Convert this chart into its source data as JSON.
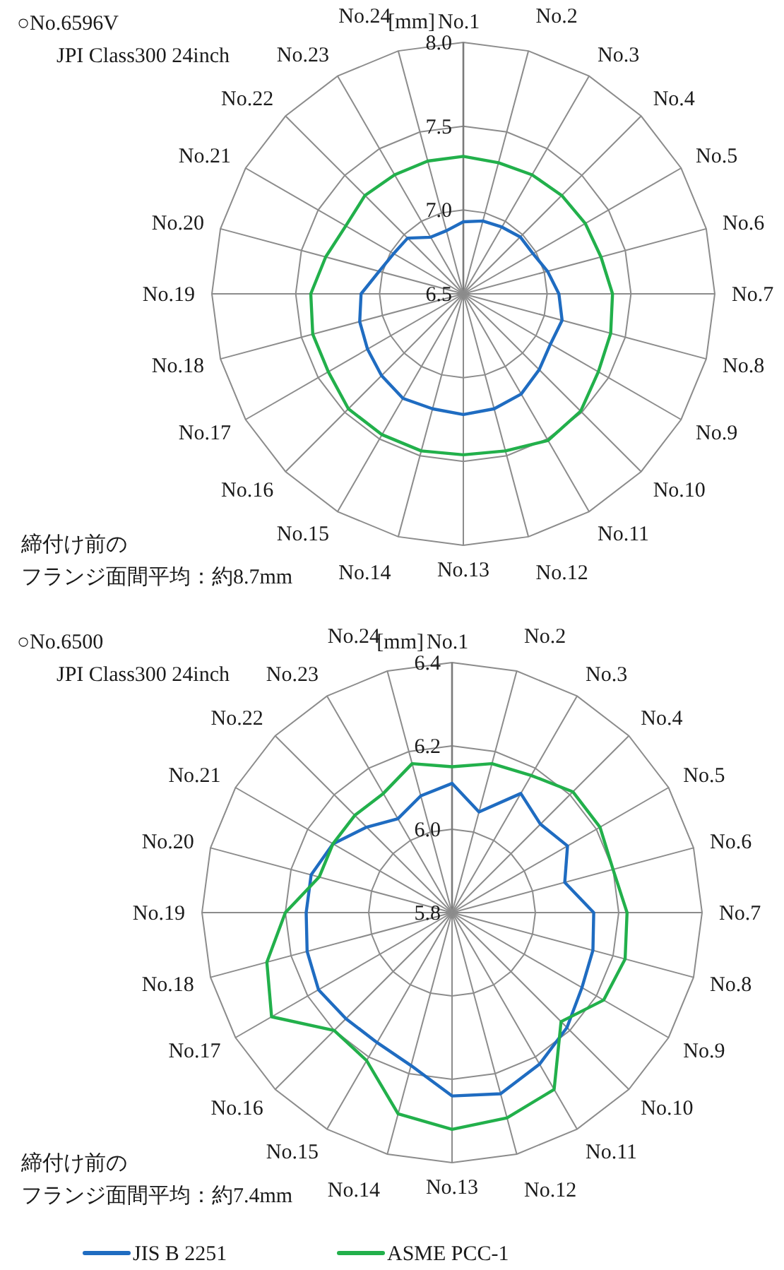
{
  "chart_data": [
    {
      "type": "radar",
      "title": "○No.6596V",
      "subtitle": "JPI Class300  24inch",
      "ylabel": "[mm]",
      "categories": [
        "No.1",
        "No.2",
        "No.3",
        "No.4",
        "No.5",
        "No.6",
        "No.7",
        "No.8",
        "No.9",
        "No.10",
        "No.11",
        "No.12",
        "No.13",
        "No.14",
        "No.15",
        "No.16",
        "No.17",
        "No.18",
        "No.19",
        "No.20",
        "No.21",
        "No.22",
        "No.23",
        "No.24"
      ],
      "series": [
        {
          "color": "#1f6cc1",
          "values": [
            6.93,
            6.95,
            6.96,
            6.98,
            6.98,
            7.02,
            7.07,
            7.11,
            7.1,
            7.14,
            7.19,
            7.21,
            7.22,
            7.21,
            7.22,
            7.19,
            7.16,
            7.14,
            7.11,
            7.02,
            6.98,
            6.97,
            6.89,
            6.89
          ]
        },
        {
          "color": "#22b04b",
          "values": [
            7.32,
            7.31,
            7.32,
            7.33,
            7.34,
            7.35,
            7.39,
            7.41,
            7.43,
            7.49,
            7.51,
            7.47,
            7.46,
            7.47,
            7.47,
            7.47,
            7.43,
            7.43,
            7.41,
            7.35,
            7.31,
            7.33,
            7.32,
            7.32
          ]
        }
      ],
      "ylim": [
        6.5,
        8.0
      ],
      "yticks": [
        6.5,
        {
          "value": 7,
          "label": "7.0"
        },
        7.5,
        {
          "value": 8,
          "label": "8.0"
        }
      ],
      "annotations": [
        "締付け前の",
        "フランジ面間平均：約8.7mm"
      ]
    },
    {
      "type": "radar",
      "title": "○No.6500",
      "subtitle": "JPI Class300  24inch",
      "ylabel": "[mm]",
      "categories": [
        "No.1",
        "No.2",
        "No.3",
        "No.4",
        "No.5",
        "No.6",
        "No.7",
        "No.8",
        "No.9",
        "No.10",
        "No.11",
        "No.12",
        "No.13",
        "No.14",
        "No.15",
        "No.16",
        "No.17",
        "No.18",
        "No.19",
        "No.20",
        "No.21",
        "No.22",
        "No.23",
        "No.24"
      ],
      "series": [
        {
          "name": "JIS B 2251",
          "color": "#1f6cc1",
          "values": [
            6.11,
            6.05,
            6.13,
            6.1,
            6.12,
            6.08,
            6.14,
            6.15,
            6.16,
            6.19,
            6.22,
            6.25,
            6.24,
            6.18,
            6.16,
            6.16,
            6.17,
            6.16,
            6.15,
            6.15,
            6.13,
            6.09,
            6.06,
            6.09
          ]
        },
        {
          "name": "ASME PCC-1",
          "color": "#22b04b",
          "values": [
            6.15,
            6.17,
            6.18,
            6.21,
            6.21,
            6.2,
            6.22,
            6.23,
            6.22,
            6.17,
            6.29,
            6.31,
            6.32,
            6.3,
            6.21,
            6.2,
            6.3,
            6.26,
            6.2,
            6.13,
            6.13,
            6.13,
            6.13,
            6.17
          ]
        }
      ],
      "ylim": [
        5.8,
        6.4
      ],
      "yticks": [
        5.8,
        {
          "value": 6,
          "label": "6.0"
        },
        6.2,
        6.4
      ],
      "annotations": [
        "締付け前の",
        "フランジ面間平均：約7.4mm"
      ],
      "legend": "bottom"
    }
  ]
}
